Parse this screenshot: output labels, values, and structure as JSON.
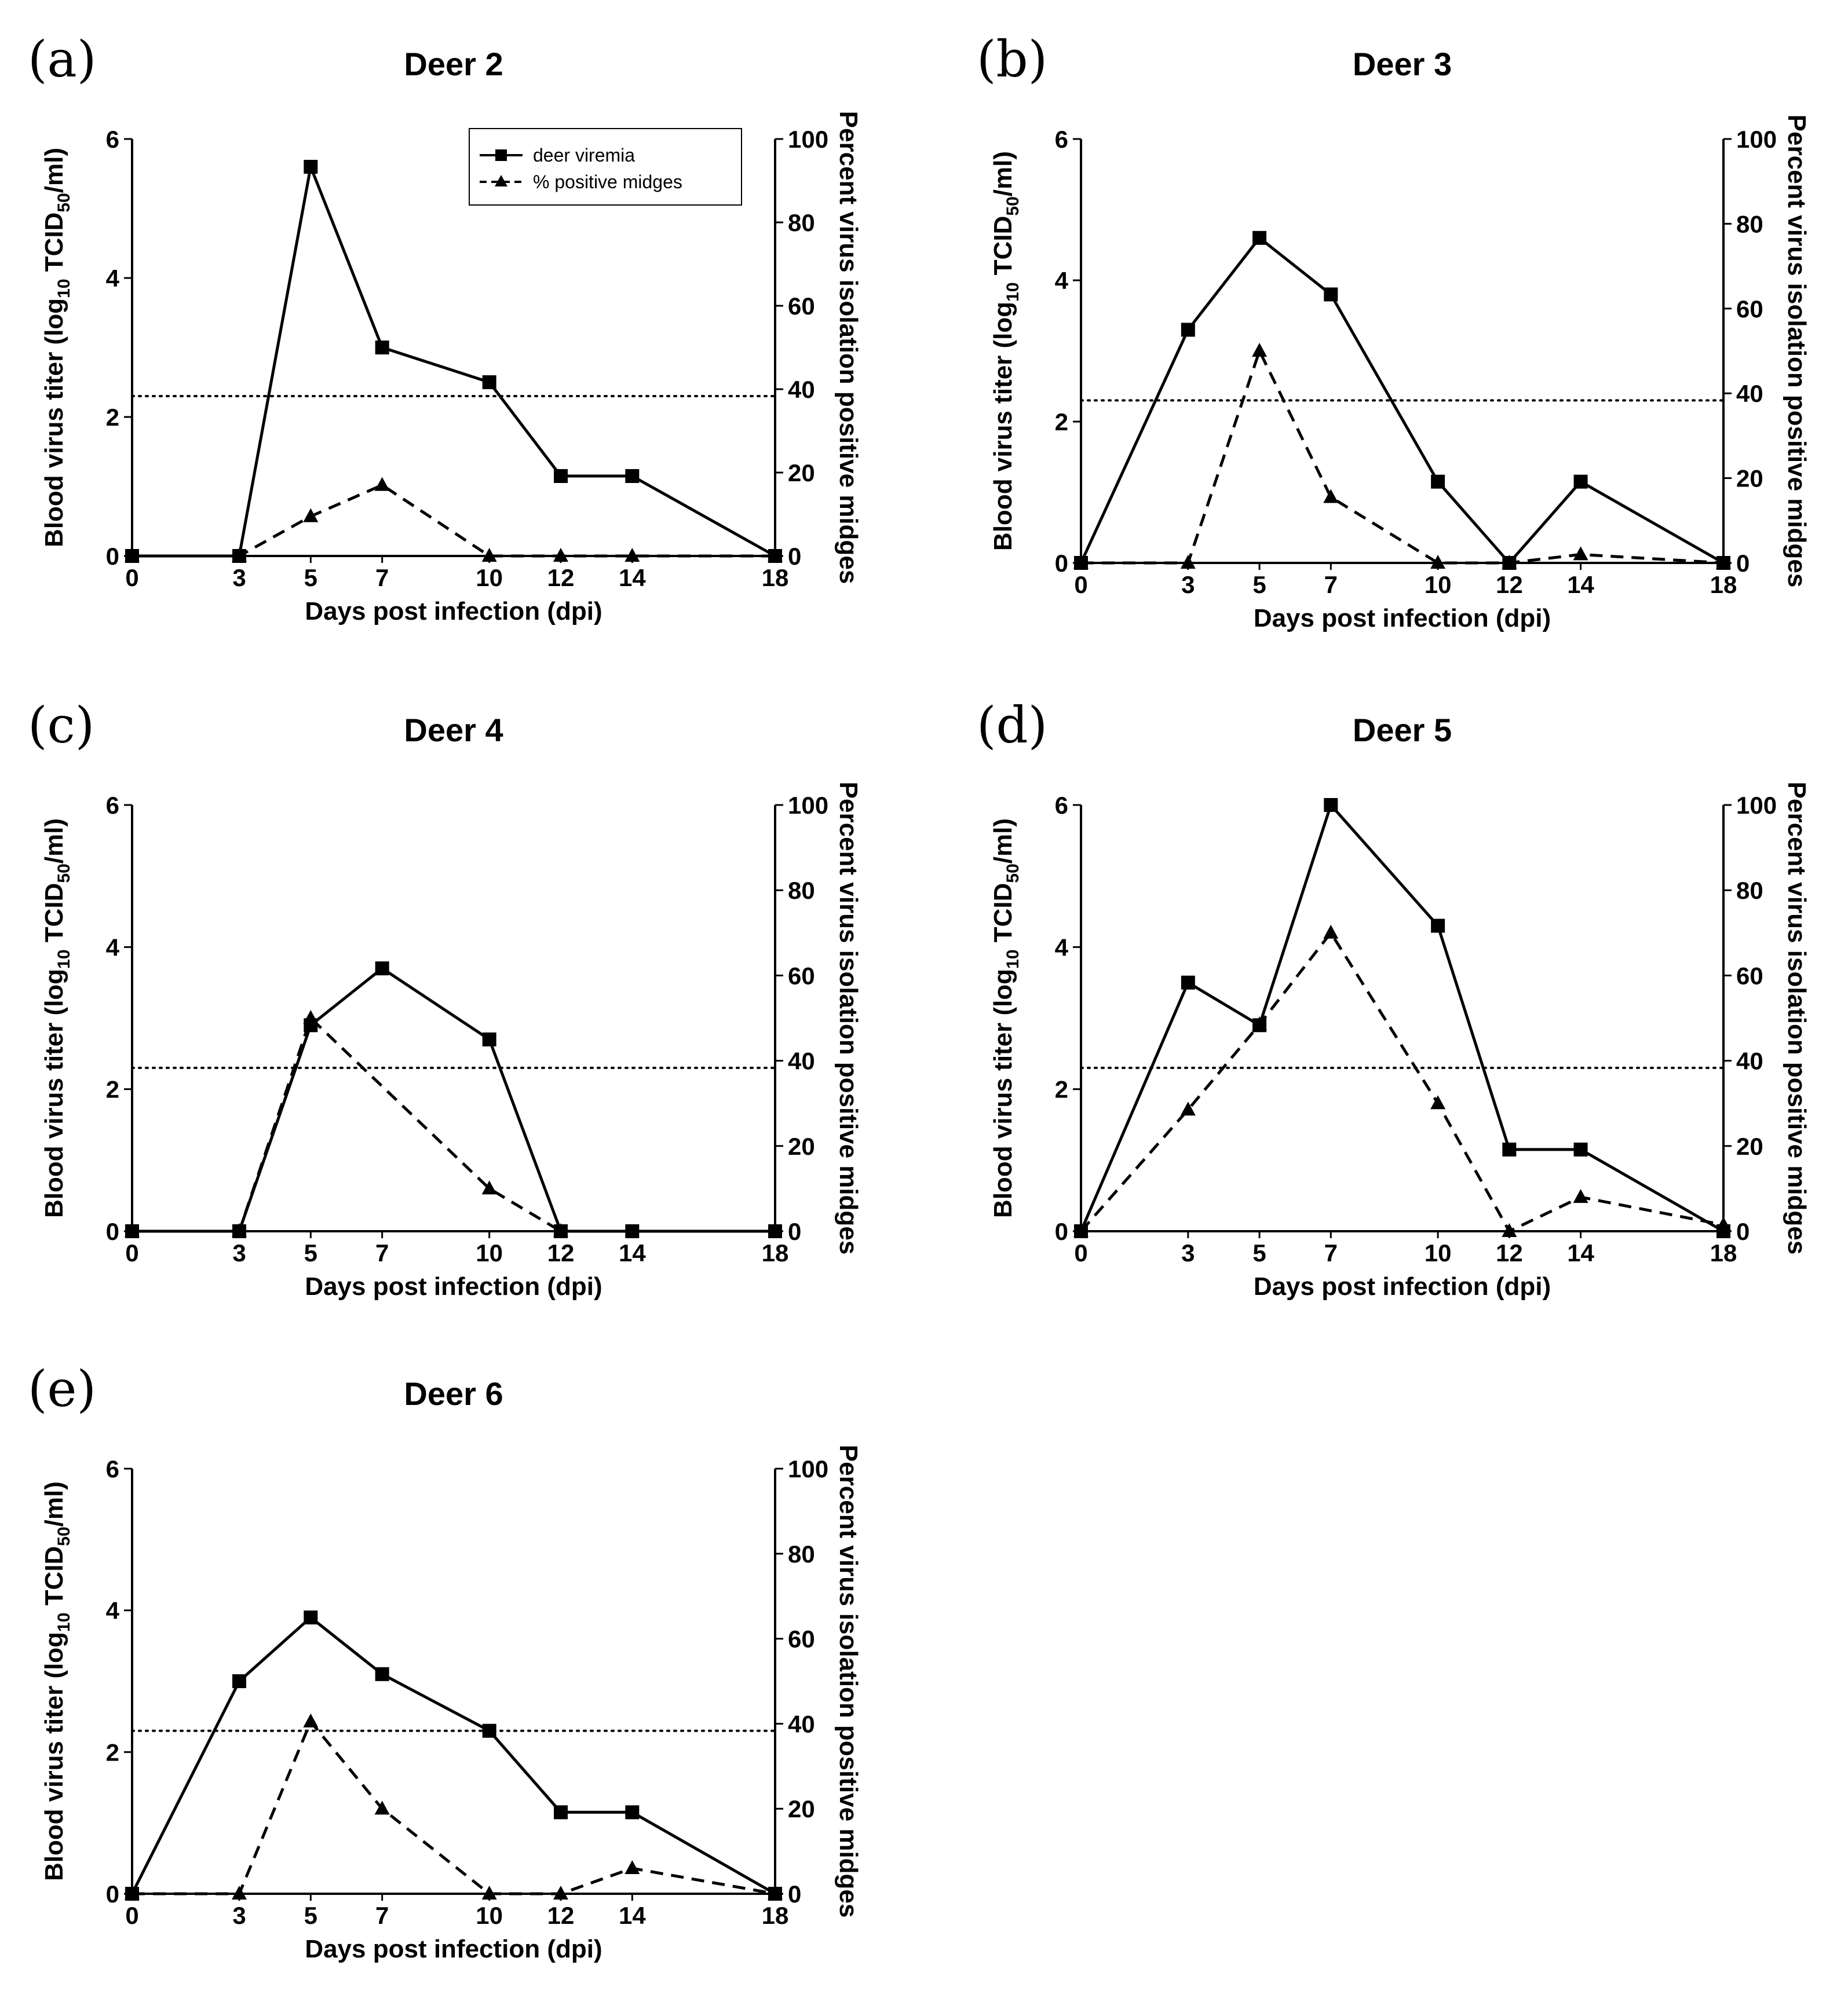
{
  "figure": {
    "x_label": "Days post infection (dpi)",
    "y_left_label_pre": "Blood virus titer (log",
    "y_left_label_sub1": "10",
    "y_left_label_mid": " TCID",
    "y_left_label_sub2": "50",
    "y_left_label_post": "/ml)",
    "y_right_label": "Percent virus isolation positive midges",
    "legend": {
      "viremia": "deer viremia",
      "midges": "% positive midges"
    },
    "colors": {
      "line": "#000000",
      "background": "#ffffff"
    }
  },
  "chart_data": [
    {
      "type": "line",
      "panel": "(a)",
      "title": "Deer 2",
      "x": [
        0,
        3,
        5,
        7,
        10,
        12,
        14,
        18
      ],
      "x_ticks": [
        "0",
        "3",
        "5",
        "7",
        "10",
        "12",
        "14",
        "18"
      ],
      "xlim": [
        0,
        18
      ],
      "ylim_left": [
        0,
        6
      ],
      "ylim_right": [
        0,
        100
      ],
      "y_left_ticks": [
        "0",
        "2",
        "4",
        "6"
      ],
      "y_right_ticks": [
        "0",
        "20",
        "40",
        "60",
        "80",
        "100"
      ],
      "threshold_log": 2.3,
      "series": [
        {
          "name": "deer viremia",
          "axis": "left",
          "style": "solid",
          "marker": "square",
          "x": [
            0,
            3,
            5,
            7,
            10,
            12,
            14,
            18
          ],
          "values": [
            0,
            0,
            5.6,
            3.0,
            2.5,
            1.15,
            1.15,
            0
          ]
        },
        {
          "name": "% positive midges",
          "axis": "right",
          "style": "dashed",
          "marker": "triangle",
          "x": [
            0,
            3,
            5,
            7,
            10,
            12,
            14,
            18
          ],
          "values": [
            0,
            0,
            9.5,
            17,
            0,
            0,
            0,
            0
          ]
        }
      ],
      "legend_visible": true
    },
    {
      "type": "line",
      "panel": "(b)",
      "title": "Deer 3",
      "x": [
        0,
        3,
        5,
        7,
        10,
        12,
        14,
        18
      ],
      "x_ticks": [
        "0",
        "3",
        "5",
        "7",
        "10",
        "12",
        "14",
        "18"
      ],
      "xlim": [
        0,
        18
      ],
      "ylim_left": [
        0,
        6
      ],
      "ylim_right": [
        0,
        100
      ],
      "y_left_ticks": [
        "0",
        "2",
        "4",
        "6"
      ],
      "y_right_ticks": [
        "0",
        "20",
        "40",
        "60",
        "80",
        "100"
      ],
      "threshold_log": 2.3,
      "series": [
        {
          "name": "deer viremia",
          "axis": "left",
          "style": "solid",
          "marker": "square",
          "x": [
            0,
            3,
            5,
            7,
            10,
            12,
            14,
            18
          ],
          "values": [
            0,
            3.3,
            4.6,
            3.8,
            1.15,
            0,
            1.15,
            0
          ]
        },
        {
          "name": "% positive midges",
          "axis": "right",
          "style": "dashed",
          "marker": "triangle",
          "x": [
            0,
            3,
            5,
            7,
            10,
            12,
            14,
            18
          ],
          "values": [
            0,
            0,
            50,
            15.5,
            0,
            0,
            2,
            0
          ]
        }
      ],
      "legend_visible": false
    },
    {
      "type": "line",
      "panel": "(c)",
      "title": "Deer 4",
      "x": [
        0,
        3,
        5,
        7,
        10,
        12,
        14,
        18
      ],
      "x_ticks": [
        "0",
        "3",
        "5",
        "7",
        "10",
        "12",
        "14",
        "18"
      ],
      "xlim": [
        0,
        18
      ],
      "ylim_left": [
        0,
        6
      ],
      "ylim_right": [
        0,
        100
      ],
      "y_left_ticks": [
        "0",
        "2",
        "4",
        "6"
      ],
      "y_right_ticks": [
        "0",
        "20",
        "40",
        "60",
        "80",
        "100"
      ],
      "threshold_log": 2.3,
      "series": [
        {
          "name": "deer viremia",
          "axis": "left",
          "style": "solid",
          "marker": "square",
          "x": [
            0,
            3,
            5,
            7,
            10,
            12,
            14,
            18
          ],
          "values": [
            0,
            0,
            2.9,
            3.7,
            2.7,
            0,
            0,
            0
          ]
        },
        {
          "name": "% positive midges",
          "axis": "right",
          "style": "dashed",
          "marker": "triangle",
          "x": [
            0,
            3,
            5,
            10,
            12
          ],
          "values": [
            0,
            0,
            50,
            10,
            0
          ]
        }
      ],
      "legend_visible": false
    },
    {
      "type": "line",
      "panel": "(d)",
      "title": "Deer 5",
      "x": [
        0,
        3,
        5,
        7,
        10,
        12,
        14,
        18
      ],
      "x_ticks": [
        "0",
        "3",
        "5",
        "7",
        "10",
        "12",
        "14",
        "18"
      ],
      "xlim": [
        0,
        18
      ],
      "ylim_left": [
        0,
        6
      ],
      "ylim_right": [
        0,
        100
      ],
      "y_left_ticks": [
        "0",
        "2",
        "4",
        "6"
      ],
      "y_right_ticks": [
        "0",
        "20",
        "40",
        "60",
        "80",
        "100"
      ],
      "threshold_log": 2.3,
      "series": [
        {
          "name": "deer viremia",
          "axis": "left",
          "style": "solid",
          "marker": "square",
          "x": [
            0,
            3,
            5,
            7,
            10,
            12,
            14,
            18
          ],
          "values": [
            0,
            3.5,
            2.9,
            6.0,
            4.3,
            1.15,
            1.15,
            0
          ]
        },
        {
          "name": "% positive midges",
          "axis": "right",
          "style": "dashed",
          "marker": "triangle",
          "x": [
            0,
            3,
            5,
            7,
            10,
            12,
            14,
            18
          ],
          "values": [
            0,
            28.5,
            48.5,
            70,
            30,
            0,
            8,
            1.5
          ]
        }
      ],
      "legend_visible": false
    },
    {
      "type": "line",
      "panel": "(e)",
      "title": "Deer 6",
      "x": [
        0,
        3,
        5,
        7,
        10,
        12,
        14,
        18
      ],
      "x_ticks": [
        "0",
        "3",
        "5",
        "7",
        "10",
        "12",
        "14",
        "18"
      ],
      "xlim": [
        0,
        18
      ],
      "ylim_left": [
        0,
        6
      ],
      "ylim_right": [
        0,
        100
      ],
      "y_left_ticks": [
        "0",
        "2",
        "4",
        "6"
      ],
      "y_right_ticks": [
        "0",
        "20",
        "40",
        "60",
        "80",
        "100"
      ],
      "threshold_log": 2.3,
      "series": [
        {
          "name": "deer viremia",
          "axis": "left",
          "style": "solid",
          "marker": "square",
          "x": [
            0,
            3,
            5,
            7,
            10,
            12,
            14,
            18
          ],
          "values": [
            0,
            3.0,
            3.9,
            3.1,
            2.3,
            1.15,
            1.15,
            0
          ]
        },
        {
          "name": "% positive midges",
          "axis": "right",
          "style": "dashed",
          "marker": "triangle",
          "x": [
            0,
            3,
            5,
            7,
            10,
            12,
            14,
            18
          ],
          "values": [
            0,
            0,
            40.5,
            20,
            0,
            0,
            6,
            0
          ]
        }
      ],
      "legend_visible": false
    }
  ]
}
